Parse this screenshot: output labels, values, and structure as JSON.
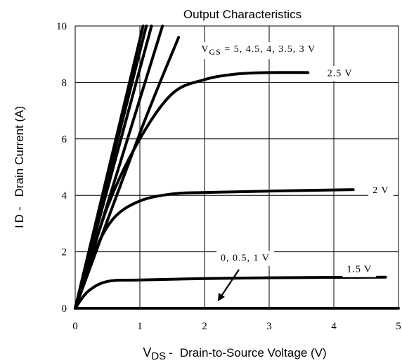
{
  "chart_data": {
    "type": "line",
    "title": "Output Characteristics",
    "xlabel": "Drain-to-Source Voltage (V)",
    "xlabel_symbol": "V",
    "xlabel_symbol_sub": "DS",
    "xlabel_dash": "-",
    "ylabel": "Drain Current (A)",
    "ylabel_symbol": "I",
    "ylabel_symbol_sub": "D",
    "ylabel_dash": "-",
    "xlim": [
      0,
      5
    ],
    "ylim": [
      0,
      10
    ],
    "xticks": [
      "0",
      "1",
      "2",
      "3",
      "4",
      "5"
    ],
    "yticks": [
      "0",
      "2",
      "4",
      "6",
      "8",
      "10"
    ],
    "grid": true,
    "line_color": "#000000",
    "series": [
      {
        "name": "5 V",
        "x": [
          0,
          1.05
        ],
        "y": [
          0,
          10
        ]
      },
      {
        "name": "4.5 V",
        "x": [
          0,
          1.1
        ],
        "y": [
          0,
          10
        ]
      },
      {
        "name": "4 V",
        "x": [
          0,
          1.18
        ],
        "y": [
          0,
          10
        ]
      },
      {
        "name": "3.5 V",
        "x": [
          0,
          1.35
        ],
        "y": [
          0,
          10
        ]
      },
      {
        "name": "3 V",
        "x": [
          0,
          1.0,
          1.6
        ],
        "y": [
          0,
          6.2,
          9.6
        ]
      },
      {
        "name": "2.5 V",
        "x": [
          0,
          0.5,
          1.0,
          1.5,
          2.0,
          2.5,
          3.0,
          3.6
        ],
        "y": [
          0,
          3.6,
          6.0,
          7.6,
          8.1,
          8.3,
          8.35,
          8.35
        ]
      },
      {
        "name": "2 V",
        "x": [
          0,
          0.3,
          0.6,
          1.0,
          1.5,
          2.0,
          3.0,
          4.3
        ],
        "y": [
          0,
          2.0,
          3.2,
          3.8,
          4.05,
          4.1,
          4.15,
          4.2
        ]
      },
      {
        "name": "1.5 V",
        "x": [
          0,
          0.2,
          0.5,
          1.0,
          2.0,
          3.0,
          4.8
        ],
        "y": [
          0,
          0.6,
          0.95,
          1.0,
          1.05,
          1.08,
          1.1
        ]
      },
      {
        "name": "0, 0.5, 1 V",
        "x": [
          0,
          5
        ],
        "y": [
          0,
          0
        ]
      }
    ],
    "annotations": [
      {
        "text": "V",
        "sub": "GS",
        "rest": " = 5, 4.5, 4, 3.5, 3 V",
        "x": 1.95,
        "y": 9.2
      },
      {
        "text": "2.5 V",
        "x": 3.9,
        "y": 8.35
      },
      {
        "text": "2 V",
        "x": 4.6,
        "y": 4.2
      },
      {
        "text": "1.5 V",
        "x": 4.2,
        "y": 1.4
      },
      {
        "text": "0, 0.5, 1 V",
        "x": 2.25,
        "y": 1.8
      }
    ]
  }
}
